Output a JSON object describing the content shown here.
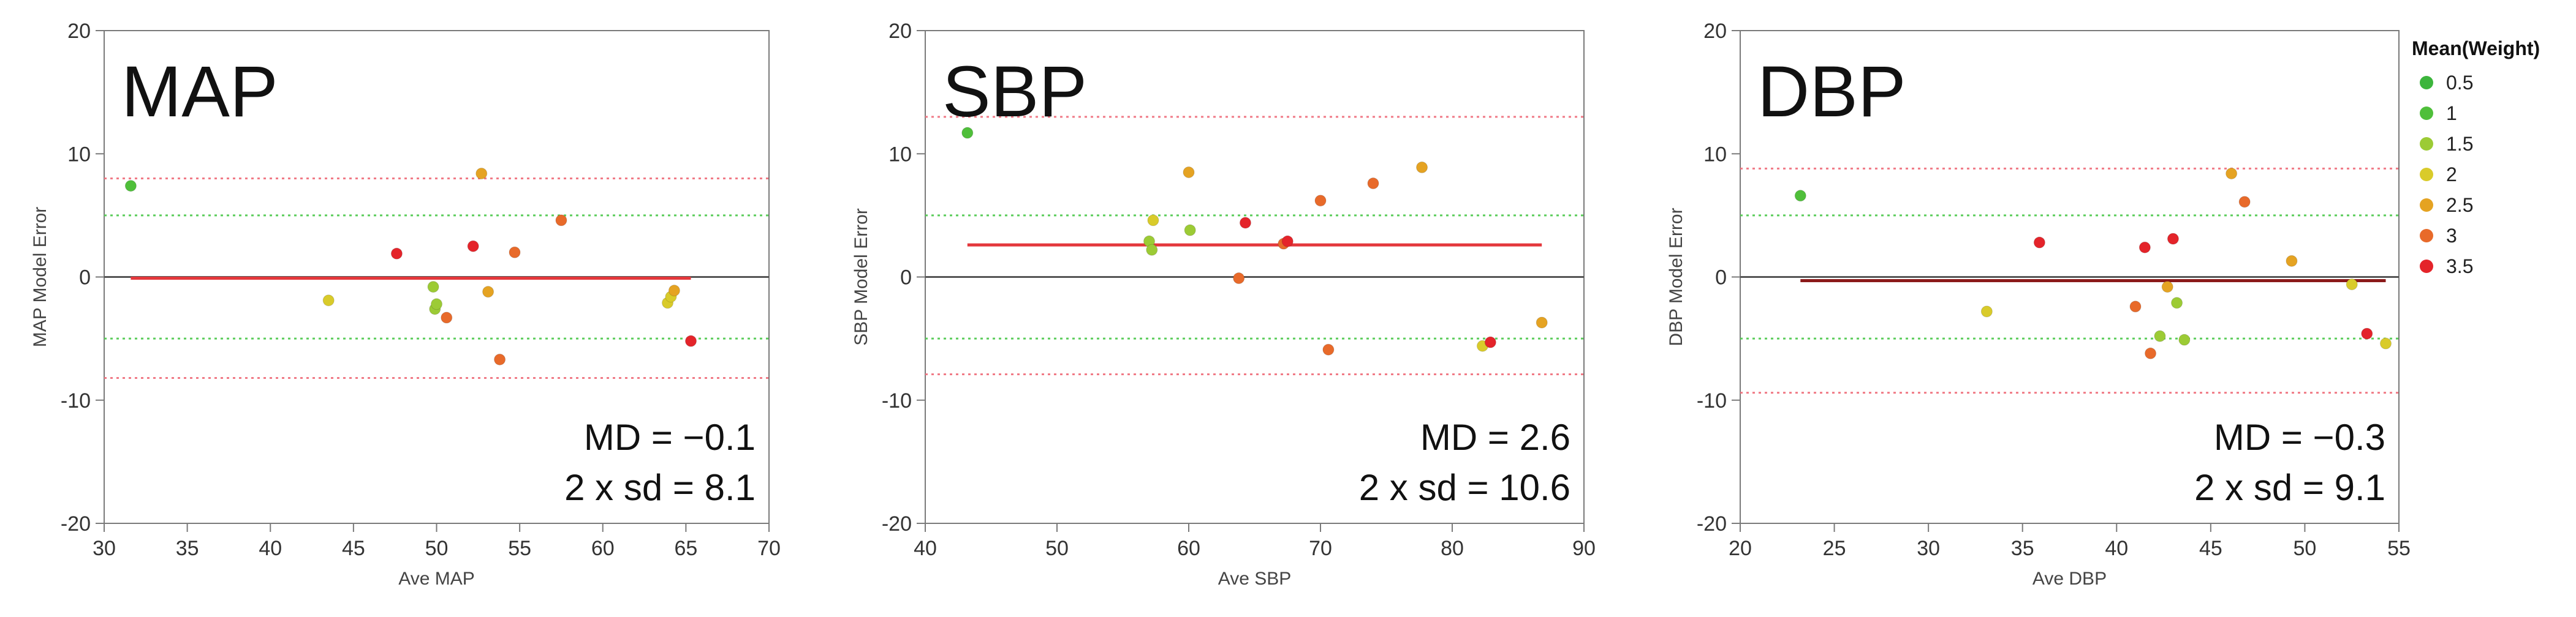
{
  "chart_data": [
    {
      "type": "scatter",
      "title": "MAP",
      "xlabel": "Ave MAP",
      "ylabel": "MAP Model Error",
      "xlim": [
        30,
        70
      ],
      "ylim": [
        -20,
        20
      ],
      "xticks": [
        30,
        35,
        40,
        45,
        50,
        55,
        60,
        65,
        70
      ],
      "yticks": [
        20,
        10,
        0,
        -10,
        -20
      ],
      "lines": {
        "md": -0.1,
        "inner_upper": 5,
        "inner_lower": -5,
        "outer_upper": 8,
        "outer_lower": -8.2
      },
      "annotations": [
        "MD = −0.1",
        "2 x sd = 8.1"
      ],
      "points": [
        {
          "x": 31.6,
          "y": 7.4,
          "w": 1
        },
        {
          "x": 43.5,
          "y": -1.9,
          "w": 2
        },
        {
          "x": 47.6,
          "y": 1.9,
          "w": 3.5
        },
        {
          "x": 49.8,
          "y": -0.8,
          "w": 1.5
        },
        {
          "x": 49.9,
          "y": -2.6,
          "w": 1.5
        },
        {
          "x": 50.0,
          "y": -2.2,
          "w": 1.5
        },
        {
          "x": 50.6,
          "y": -3.3,
          "w": 3
        },
        {
          "x": 52.2,
          "y": 2.5,
          "w": 3.5
        },
        {
          "x": 52.7,
          "y": 8.4,
          "w": 2.5
        },
        {
          "x": 53.1,
          "y": -1.2,
          "w": 2.5
        },
        {
          "x": 53.8,
          "y": -6.7,
          "w": 3
        },
        {
          "x": 54.7,
          "y": 2.0,
          "w": 3
        },
        {
          "x": 57.5,
          "y": 4.6,
          "w": 3
        },
        {
          "x": 63.9,
          "y": -2.1,
          "w": 2
        },
        {
          "x": 64.1,
          "y": -1.6,
          "w": 2
        },
        {
          "x": 64.3,
          "y": -1.1,
          "w": 2.5
        },
        {
          "x": 65.3,
          "y": -5.2,
          "w": 3.5
        }
      ]
    },
    {
      "type": "scatter",
      "title": "SBP",
      "xlabel": "Ave SBP",
      "ylabel": "SBP Model Error",
      "xlim": [
        40,
        90
      ],
      "ylim": [
        -20,
        20
      ],
      "xticks": [
        40,
        50,
        60,
        70,
        80,
        90
      ],
      "yticks": [
        20,
        10,
        0,
        -10,
        -20
      ],
      "lines": {
        "md": 2.6,
        "inner_upper": 5,
        "inner_lower": -5,
        "outer_upper": 13,
        "outer_lower": -7.9
      },
      "annotations": [
        "MD = 2.6",
        "2 x sd = 10.6"
      ],
      "points": [
        {
          "x": 43.2,
          "y": 11.7,
          "w": 1
        },
        {
          "x": 57.0,
          "y": 2.9,
          "w": 1.5
        },
        {
          "x": 57.2,
          "y": 2.2,
          "w": 1.5
        },
        {
          "x": 57.3,
          "y": 4.6,
          "w": 2
        },
        {
          "x": 60.0,
          "y": 8.5,
          "w": 2.5
        },
        {
          "x": 60.1,
          "y": 3.8,
          "w": 1.5
        },
        {
          "x": 63.8,
          "y": -0.1,
          "w": 3
        },
        {
          "x": 64.3,
          "y": 4.4,
          "w": 3.5
        },
        {
          "x": 67.2,
          "y": 2.7,
          "w": 3
        },
        {
          "x": 67.5,
          "y": 2.9,
          "w": 3.5
        },
        {
          "x": 70.0,
          "y": 6.2,
          "w": 3
        },
        {
          "x": 70.6,
          "y": -5.9,
          "w": 3
        },
        {
          "x": 74.0,
          "y": 7.6,
          "w": 3
        },
        {
          "x": 77.7,
          "y": 8.9,
          "w": 2.5
        },
        {
          "x": 82.3,
          "y": -5.6,
          "w": 2
        },
        {
          "x": 82.9,
          "y": -5.3,
          "w": 3.5
        },
        {
          "x": 86.8,
          "y": -3.7,
          "w": 2.5
        }
      ]
    },
    {
      "type": "scatter",
      "title": "DBP",
      "xlabel": "Ave DBP",
      "ylabel": "DBP Model Error",
      "xlim": [
        20,
        55
      ],
      "ylim": [
        -20,
        20
      ],
      "xticks": [
        20,
        25,
        30,
        35,
        40,
        45,
        50,
        55
      ],
      "yticks": [
        20,
        10,
        0,
        -10,
        -20
      ],
      "lines": {
        "md": -0.3,
        "inner_upper": 5,
        "inner_lower": -5,
        "outer_upper": 8.8,
        "outer_lower": -9.4
      },
      "annotations": [
        "MD = −0.3",
        "2 x sd = 9.1"
      ],
      "legend": {
        "title": "Mean(Weight)",
        "entries": [
          {
            "label": "0.5",
            "color": "#3cb53c"
          },
          {
            "label": "1",
            "color": "#4fbf3a"
          },
          {
            "label": "1.5",
            "color": "#9ccb35"
          },
          {
            "label": "2",
            "color": "#d9cb2a"
          },
          {
            "label": "2.5",
            "color": "#e5a322"
          },
          {
            "label": "3",
            "color": "#e86a2a"
          },
          {
            "label": "3.5",
            "color": "#e4242a"
          }
        ]
      },
      "points": [
        {
          "x": 23.2,
          "y": 6.6,
          "w": 1
        },
        {
          "x": 33.1,
          "y": -2.8,
          "w": 2
        },
        {
          "x": 35.9,
          "y": 2.8,
          "w": 3.5
        },
        {
          "x": 41.0,
          "y": -2.4,
          "w": 3
        },
        {
          "x": 41.5,
          "y": 2.4,
          "w": 3.5
        },
        {
          "x": 41.8,
          "y": -6.2,
          "w": 3
        },
        {
          "x": 42.3,
          "y": -4.8,
          "w": 1.5
        },
        {
          "x": 42.7,
          "y": -0.8,
          "w": 2.5
        },
        {
          "x": 43.0,
          "y": 3.1,
          "w": 3.5
        },
        {
          "x": 43.2,
          "y": -2.1,
          "w": 1.5
        },
        {
          "x": 43.6,
          "y": -5.1,
          "w": 1.5
        },
        {
          "x": 46.1,
          "y": 8.4,
          "w": 2.5
        },
        {
          "x": 46.8,
          "y": 6.1,
          "w": 3
        },
        {
          "x": 49.3,
          "y": 1.3,
          "w": 2.5
        },
        {
          "x": 52.5,
          "y": -0.6,
          "w": 2
        },
        {
          "x": 53.3,
          "y": -4.6,
          "w": 3.5
        },
        {
          "x": 54.3,
          "y": -5.4,
          "w": 2
        }
      ]
    }
  ],
  "colors": {
    "md_line": "#e4383c",
    "md_line_dbp": "#8b1a1a",
    "zero_line": "#555555",
    "inner_limits": "#5ccd5c",
    "outer_limits": "#f07a86",
    "axis": "#7a7a7a"
  }
}
